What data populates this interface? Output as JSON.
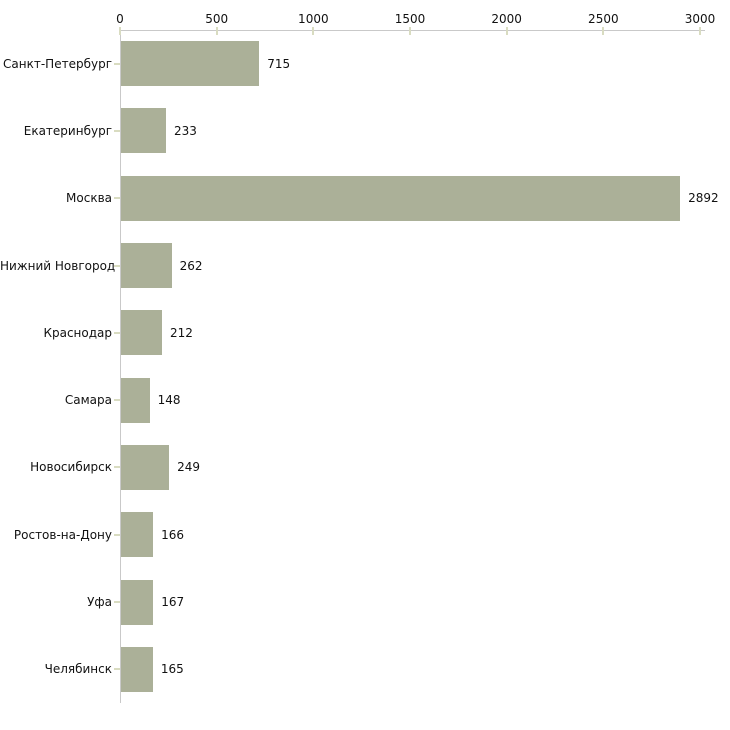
{
  "chart_data": {
    "type": "bar",
    "orientation": "horizontal",
    "title": "",
    "categories": [
      "Санкт-Петербург",
      "Екатеринбург",
      "Москва",
      "Нижний Новгород",
      "Краснодар",
      "Самара",
      "Новосибирск",
      "Ростов-на-Дону",
      "Уфа",
      "Челябинск"
    ],
    "values": [
      715,
      233,
      2892,
      262,
      212,
      148,
      249,
      166,
      167,
      165
    ],
    "value_labels": [
      "715",
      "233",
      "2892",
      "262",
      "212",
      "148",
      "249",
      "166",
      "167",
      "165"
    ],
    "x_axis": {
      "position": "top",
      "tick_values": [
        0,
        500,
        1000,
        1500,
        2000,
        2500,
        3000
      ],
      "tick_labels": [
        "0",
        "500",
        "1000",
        "1500",
        "2000",
        "2500",
        "3000"
      ],
      "range": [
        0,
        3000
      ]
    },
    "grid": false,
    "legend": null,
    "colors": {
      "bar": "#abb098",
      "axis_line": "#c9c9c9",
      "tick_mark": "#d9dcc1",
      "text": "#111111",
      "background": "#ffffff"
    }
  }
}
